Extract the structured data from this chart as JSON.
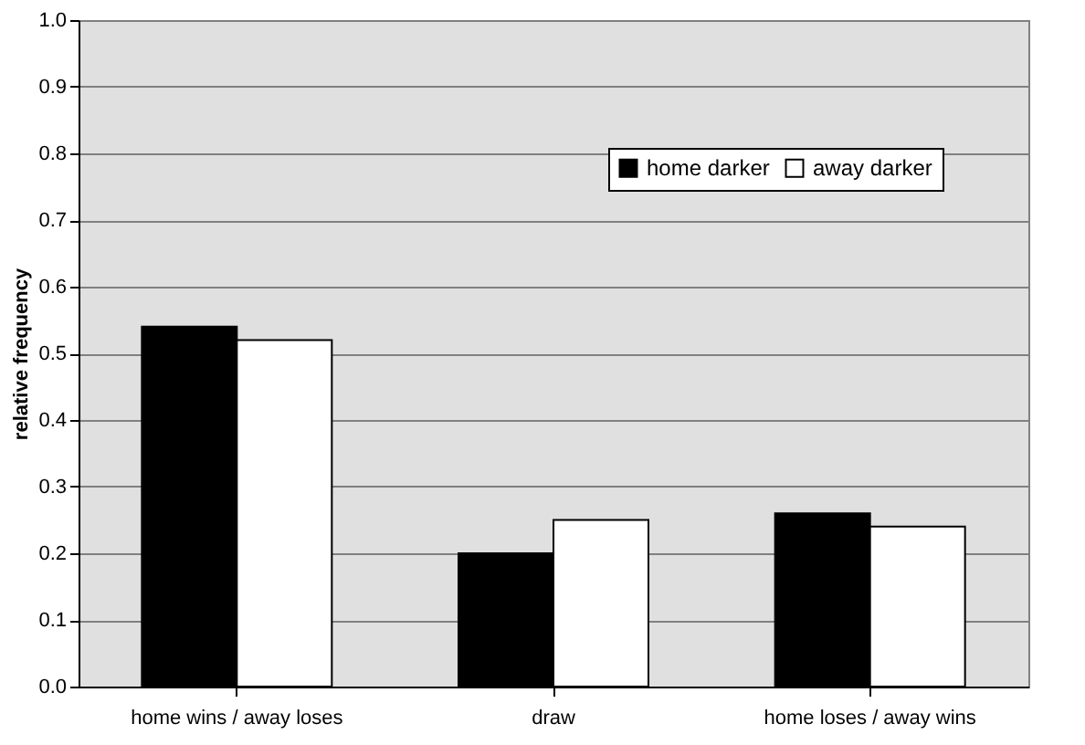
{
  "chart_data": {
    "type": "bar",
    "ylabel": "relative frequency",
    "categories": [
      "home wins / away loses",
      "draw",
      "home loses / away wins"
    ],
    "series": [
      {
        "name": "home darker",
        "color": "#000000",
        "values": [
          0.54,
          0.2,
          0.26
        ]
      },
      {
        "name": "away darker",
        "color": "#ffffff",
        "values": [
          0.52,
          0.25,
          0.24
        ]
      }
    ],
    "ylim": [
      0,
      1
    ],
    "yticks": [
      {
        "value": 0,
        "label": "0.0"
      },
      0.1,
      0.2,
      0.3,
      0.4,
      0.5,
      0.6,
      0.7,
      0.8,
      0.9,
      {
        "value": 1,
        "label": "1.0"
      }
    ],
    "grid": "y",
    "legend": "top right"
  }
}
